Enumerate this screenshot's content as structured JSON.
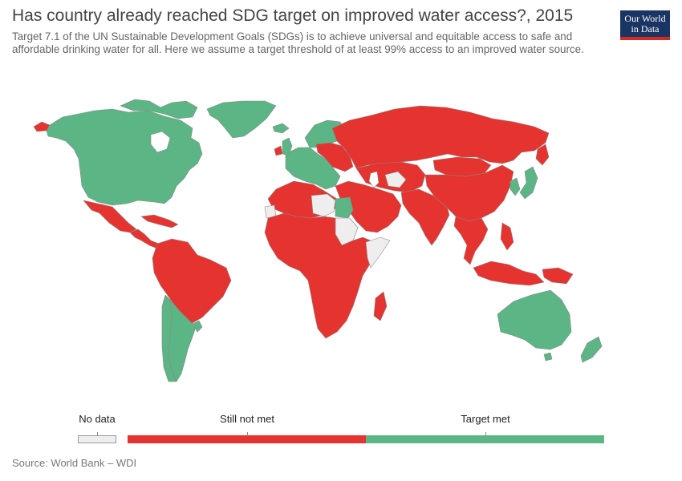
{
  "header": {
    "title": "Has country already reached SDG target on improved water access?, 2015",
    "subtitle": "Target 7.1 of the UN Sustainable Development Goals (SDGs) is to achieve universal and equitable access to safe and affordable drinking water for all. Here we assume a target threshold of at least 99% access to an improved water source."
  },
  "logo": {
    "line1": "Our World",
    "line2": "in Data"
  },
  "legend": {
    "items": [
      {
        "label": "No data",
        "color": "#eeeeee"
      },
      {
        "label": "Still not met",
        "color": "#e5332f"
      },
      {
        "label": "Target met",
        "color": "#5bb585"
      }
    ]
  },
  "colors": {
    "no_data": "#eeeeee",
    "not_met": "#e5332f",
    "met": "#5bb585",
    "border": "#8a8a8a"
  },
  "map": {
    "regions": {
      "north_america": "Target met",
      "greenland": "Target met",
      "alaska": "Target met",
      "mexico": "Still not met",
      "central_america": "Still not met",
      "caribbean": "Still not met",
      "south_america_north": "Still not met",
      "brazil": "Still not met",
      "argentina": "Target met",
      "chile": "Target met",
      "uruguay": "Target met",
      "western_europe": "Target met",
      "iceland": "Target met",
      "ireland": "Still not met",
      "scandinavia": "Target met",
      "eastern_europe": "Still not met",
      "russia": "Still not met",
      "north_africa": "Still not met",
      "libya": "No data",
      "egypt": "Target met",
      "sub_saharan_africa": "Still not met",
      "sudan": "No data",
      "somalia": "No data",
      "madagascar": "Still not met",
      "middle_east": "Still not met",
      "turkmenistan": "No data",
      "central_asia": "Still not met",
      "south_asia": "Still not met",
      "china": "Still not met",
      "mongolia": "Still not met",
      "korea": "Target met",
      "japan": "Target met",
      "southeast_asia": "Still not met",
      "indonesia": "Still not met",
      "papua_new_guinea": "Still not met",
      "australia": "Target met",
      "new_zealand": "Target met"
    }
  },
  "source": "Source: World Bank – WDI"
}
